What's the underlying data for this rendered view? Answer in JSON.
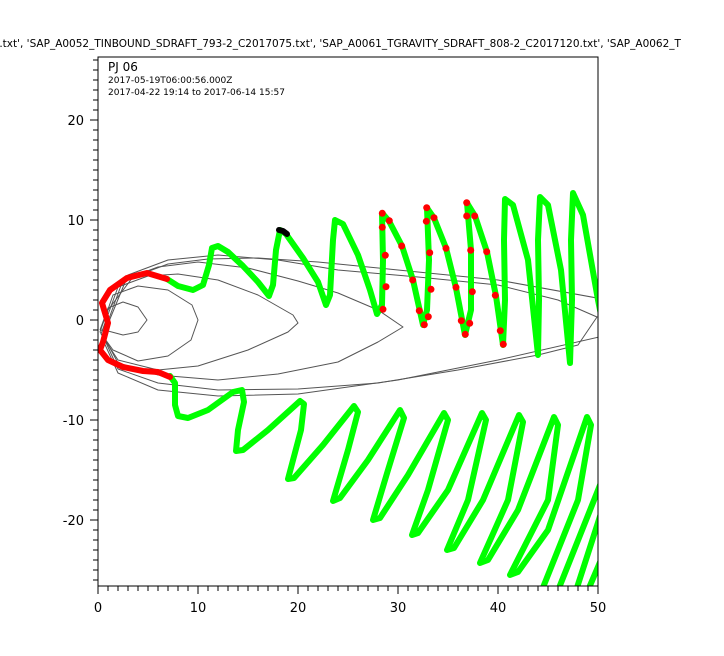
{
  "chart_data": {
    "type": "line",
    "title": "..txt', 'SAP_A0052_TINBOUND_SDRAFT_793-2_C2017075.txt', 'SAP_A0061_TGRAVITY_SDRAFT_808-2_C2017120.txt', 'SAP_A0062_T",
    "annotation": {
      "label": "PJ 06",
      "time": "2017-05-19T06:00:56.000Z",
      "range": "2017-04-22 19:14 to 2017-06-14 15:57"
    },
    "xlim": [
      0,
      50
    ],
    "ylim": [
      -26.6,
      26.3
    ],
    "xticks": [
      0,
      10,
      20,
      30,
      40,
      50
    ],
    "yticks": [
      -20,
      -10,
      0,
      10,
      20
    ],
    "xtick_labels": [
      "0",
      "10",
      "20",
      "30",
      "40",
      "50"
    ],
    "ytick_labels": [
      "-20",
      "-10",
      "0",
      "10",
      "20"
    ],
    "grid": false,
    "colors": {
      "trajectory": "#00ff00",
      "highlight": "#ff0000",
      "marker": "#000000",
      "field_lines": "#555555"
    },
    "field_lines": [
      [
        [
          0.2,
          -1.0
        ],
        [
          1,
          1.2
        ],
        [
          2.5,
          1.8
        ],
        [
          4,
          1.3
        ],
        [
          4.9,
          0
        ],
        [
          4,
          -1.2
        ],
        [
          2.5,
          -1.5
        ],
        [
          1,
          -1.1
        ],
        [
          0.2,
          -1.0
        ]
      ],
      [
        [
          0.2,
          -1.2
        ],
        [
          1.5,
          2.5
        ],
        [
          4,
          3.4
        ],
        [
          7,
          3.0
        ],
        [
          9.4,
          1.5
        ],
        [
          10,
          0
        ],
        [
          9.3,
          -2
        ],
        [
          7,
          -3.6
        ],
        [
          4,
          -4.1
        ],
        [
          1.5,
          -3
        ],
        [
          0.2,
          -1.2
        ]
      ],
      [
        [
          0.3,
          -1.4
        ],
        [
          2,
          3.3
        ],
        [
          5,
          4.4
        ],
        [
          8,
          4.6
        ],
        [
          12,
          4.0
        ],
        [
          16,
          2.5
        ],
        [
          19.5,
          0.5
        ],
        [
          20,
          -0.3
        ],
        [
          19,
          -1.2
        ],
        [
          15,
          -3.0
        ],
        [
          10,
          -4.6
        ],
        [
          6,
          -5.0
        ],
        [
          2,
          -4.0
        ],
        [
          0.3,
          -1.4
        ]
      ],
      [
        [
          0.5,
          -1.5
        ],
        [
          2.5,
          4
        ],
        [
          6,
          5.3
        ],
        [
          10,
          5.8
        ],
        [
          15,
          5.2
        ],
        [
          20,
          3.9
        ],
        [
          24,
          2.7
        ],
        [
          28,
          1.0
        ],
        [
          30.5,
          -0.7
        ],
        [
          28,
          -2.2
        ],
        [
          24,
          -4.2
        ],
        [
          18,
          -5.4
        ],
        [
          12,
          -6.0
        ],
        [
          6,
          -5.5
        ],
        [
          2,
          -4.3
        ],
        [
          0.5,
          -1.5
        ]
      ],
      [
        [
          0.5,
          -1.6
        ],
        [
          3,
          4.5
        ],
        [
          7,
          6.0
        ],
        [
          12,
          6.5
        ],
        [
          18,
          6.0
        ],
        [
          24,
          5.0
        ],
        [
          32,
          4.3
        ],
        [
          40,
          3.5
        ],
        [
          46,
          2
        ],
        [
          49.9,
          0.3
        ],
        [
          48,
          -2.5
        ],
        [
          44,
          -3.5
        ],
        [
          36,
          -5
        ],
        [
          28,
          -6.3
        ],
        [
          20,
          -6.9
        ],
        [
          12,
          -7.0
        ],
        [
          6,
          -6.3
        ],
        [
          2,
          -4.9
        ],
        [
          0.5,
          -1.6
        ]
      ],
      [
        [
          51,
          2.0
        ],
        [
          40,
          4.0
        ],
        [
          30,
          5.0
        ],
        [
          22,
          5.8
        ],
        [
          16,
          6.2
        ],
        [
          11,
          6.1
        ],
        [
          7,
          5.6
        ],
        [
          3.5,
          4.3
        ],
        [
          1,
          1
        ],
        [
          0.4,
          -1.8
        ],
        [
          2,
          -5.3
        ],
        [
          6,
          -7.0
        ],
        [
          12,
          -7.6
        ],
        [
          20,
          -7.4
        ],
        [
          30,
          -6.0
        ],
        [
          40,
          -4.0
        ],
        [
          51,
          -1.5
        ]
      ]
    ],
    "series": [
      {
        "color": "#ff0000",
        "points": [
          [
            6.9,
            4.1
          ],
          [
            4.9,
            4.7
          ],
          [
            2.9,
            4.2
          ],
          [
            1.2,
            3.0
          ],
          [
            0.4,
            1.7
          ],
          [
            1.0,
            -0.3
          ],
          [
            0.5,
            -2.2
          ],
          [
            0.2,
            -3.0
          ],
          [
            1.0,
            -4.0
          ],
          [
            2.5,
            -4.7
          ],
          [
            4.5,
            -5.1
          ],
          [
            6.0,
            -5.2
          ],
          [
            7.2,
            -5.7
          ]
        ]
      },
      {
        "color": "#00ff00",
        "points": [
          [
            6.9,
            4.1
          ],
          [
            8,
            3.4
          ],
          [
            9.5,
            3.0
          ],
          [
            10.5,
            3.5
          ],
          [
            11.1,
            5.5
          ],
          [
            11.4,
            7.2
          ],
          [
            12,
            7.4
          ],
          [
            13,
            6.8
          ],
          [
            14.5,
            5.4
          ],
          [
            16,
            3.8
          ],
          [
            17.1,
            2.4
          ],
          [
            17.5,
            3.5
          ],
          [
            17.8,
            7
          ],
          [
            18.2,
            9.0
          ],
          [
            18.8,
            8.6
          ],
          [
            20.5,
            6.2
          ],
          [
            22,
            3.8
          ],
          [
            22.8,
            1.5
          ],
          [
            23.2,
            2.5
          ],
          [
            23.5,
            8
          ],
          [
            23.7,
            10
          ],
          [
            24.5,
            9.6
          ],
          [
            26,
            6.5
          ],
          [
            27.2,
            3
          ],
          [
            27.9,
            0.6
          ],
          [
            28.4,
            1.5
          ],
          [
            28.5,
            6
          ],
          [
            28.4,
            10.7
          ],
          [
            29.1,
            9.9
          ],
          [
            30.4,
            7.4
          ],
          [
            31.5,
            4.0
          ],
          [
            32.5,
            -0.5
          ],
          [
            32.9,
            1
          ],
          [
            33.1,
            6
          ],
          [
            32.9,
            11.2
          ],
          [
            33.6,
            10.2
          ],
          [
            34.8,
            7.2
          ],
          [
            35.8,
            3.2
          ],
          [
            36.7,
            -1.5
          ],
          [
            37.3,
            1
          ],
          [
            37.3,
            7
          ],
          [
            36.9,
            11.7
          ],
          [
            37.7,
            10.4
          ],
          [
            38.9,
            6.8
          ],
          [
            39.8,
            2.4
          ],
          [
            40.5,
            -2.5
          ],
          [
            40.7,
            2
          ],
          [
            40.6,
            8
          ],
          [
            40.7,
            12.1
          ],
          [
            41.5,
            11.5
          ],
          [
            43,
            6
          ],
          [
            44,
            -3.5
          ],
          [
            44.1,
            2
          ],
          [
            44.0,
            8
          ],
          [
            44.2,
            12.3
          ],
          [
            45,
            11.5
          ],
          [
            46.3,
            5
          ],
          [
            47.2,
            -4.3
          ],
          [
            47.4,
            2
          ],
          [
            47.3,
            8
          ],
          [
            47.5,
            12.7
          ],
          [
            48.5,
            10.5
          ],
          [
            50,
            2
          ],
          [
            51,
            -3
          ]
        ]
      },
      {
        "color": "#00ff00",
        "points": [
          [
            7.2,
            -5.6
          ],
          [
            7.7,
            -6.3
          ],
          [
            7.7,
            -8.5
          ],
          [
            8,
            -9.6
          ],
          [
            9,
            -9.8
          ],
          [
            11,
            -9.0
          ],
          [
            13.5,
            -7.2
          ],
          [
            14.4,
            -7.0
          ],
          [
            14.6,
            -8.2
          ],
          [
            14.0,
            -11
          ],
          [
            13.8,
            -13.1
          ],
          [
            14.5,
            -13
          ],
          [
            17,
            -11
          ],
          [
            20.2,
            -8.1
          ],
          [
            20.6,
            -8.4
          ],
          [
            20.3,
            -11
          ],
          [
            19.0,
            -15.9
          ],
          [
            19.6,
            -15.8
          ],
          [
            22.5,
            -12.5
          ],
          [
            25.6,
            -8.6
          ],
          [
            26.0,
            -9.2
          ],
          [
            25,
            -13
          ],
          [
            23.5,
            -18.1
          ],
          [
            24.2,
            -17.8
          ],
          [
            27,
            -14
          ],
          [
            30.2,
            -9.0
          ],
          [
            30.6,
            -9.8
          ],
          [
            29,
            -15
          ],
          [
            27.5,
            -20
          ],
          [
            28.2,
            -19.8
          ],
          [
            31,
            -15.5
          ],
          [
            34.6,
            -9.3
          ],
          [
            35.0,
            -10
          ],
          [
            33,
            -17
          ],
          [
            31.4,
            -21.5
          ],
          [
            32,
            -21.3
          ],
          [
            35,
            -17
          ],
          [
            38.4,
            -9.3
          ],
          [
            38.8,
            -10
          ],
          [
            37,
            -18
          ],
          [
            34.9,
            -23.0
          ],
          [
            35.6,
            -22.8
          ],
          [
            38.5,
            -18
          ],
          [
            42.1,
            -9.5
          ],
          [
            42.5,
            -10.2
          ],
          [
            41,
            -18
          ],
          [
            38.2,
            -24.3
          ],
          [
            39,
            -24
          ],
          [
            42,
            -19
          ],
          [
            45.6,
            -9.7
          ],
          [
            46,
            -10.5
          ],
          [
            45,
            -18
          ],
          [
            41.2,
            -25.5
          ],
          [
            42,
            -25.2
          ],
          [
            45,
            -21
          ],
          [
            48.9,
            -9.7
          ],
          [
            49.3,
            -10.5
          ],
          [
            48,
            -18
          ],
          [
            44,
            -28
          ],
          [
            45.5,
            -28.3
          ],
          [
            52,
            -12
          ],
          [
            52.5,
            -12.5
          ],
          [
            47.5,
            -28
          ],
          [
            48.5,
            -28.2
          ],
          [
            52,
            -20
          ]
        ]
      },
      {
        "color": "#000000",
        "points": [
          [
            18.1,
            9.0
          ],
          [
            18.5,
            8.9
          ],
          [
            18.9,
            8.6
          ]
        ]
      }
    ],
    "highlight_points": [
      [
        28.43,
        10.67
      ],
      [
        29.13,
        9.93
      ],
      [
        28.43,
        9.27
      ],
      [
        30.37,
        7.4
      ],
      [
        28.73,
        6.47
      ],
      [
        31.47,
        4.0
      ],
      [
        28.8,
        3.33
      ],
      [
        32.13,
        0.93
      ],
      [
        28.5,
        1.07
      ],
      [
        32.63,
        -0.47
      ],
      [
        33.03,
        0.33
      ],
      [
        32.87,
        11.23
      ],
      [
        33.6,
        10.23
      ],
      [
        32.83,
        9.87
      ],
      [
        33.17,
        6.73
      ],
      [
        34.8,
        7.17
      ],
      [
        33.3,
        3.07
      ],
      [
        35.8,
        3.27
      ],
      [
        36.33,
        -0.07
      ],
      [
        36.73,
        -1.43
      ],
      [
        37.17,
        -0.33
      ],
      [
        37.43,
        2.83
      ],
      [
        37.27,
        6.97
      ],
      [
        36.87,
        10.4
      ],
      [
        36.87,
        11.73
      ],
      [
        37.67,
        10.4
      ],
      [
        38.87,
        6.83
      ],
      [
        39.73,
        2.47
      ],
      [
        40.23,
        -1.07
      ],
      [
        40.53,
        -2.43
      ]
    ]
  }
}
